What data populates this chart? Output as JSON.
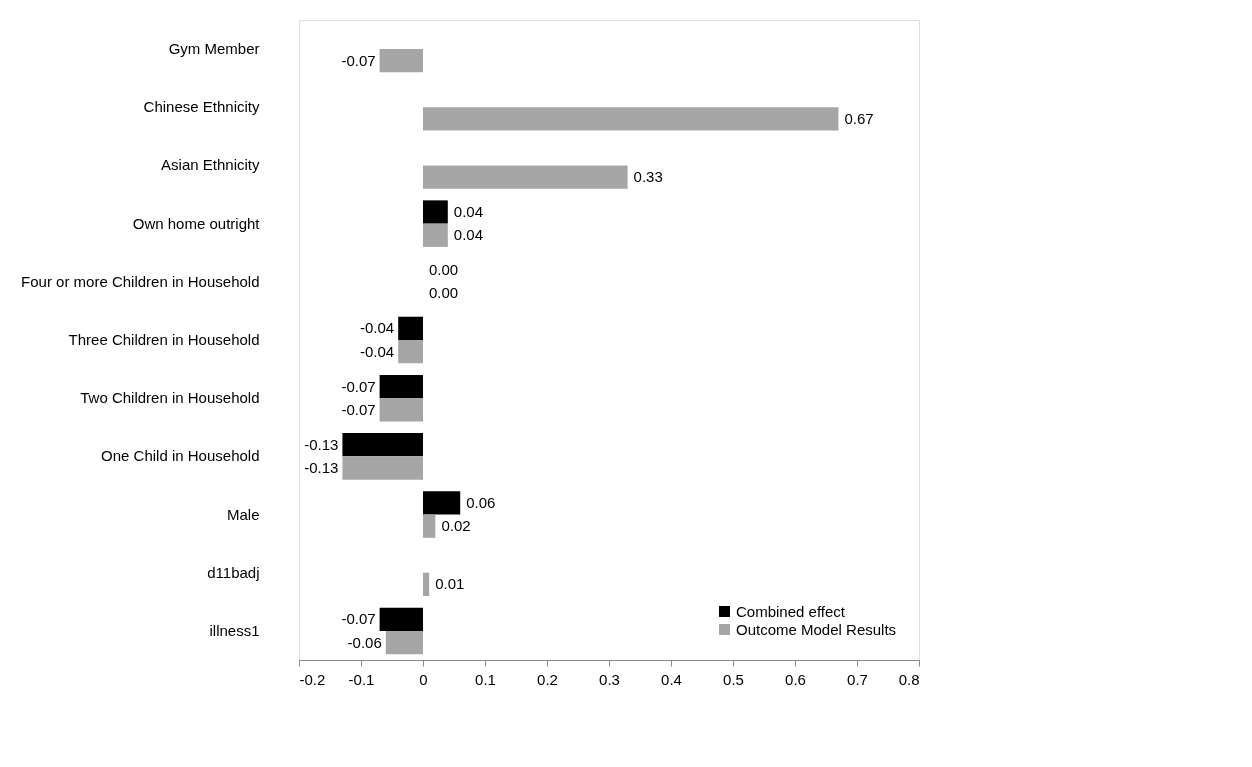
{
  "chart_data": {
    "type": "bar",
    "orientation": "horizontal",
    "categories": [
      "Gym Member",
      "Chinese Ethnicity",
      "Asian Ethnicity",
      "Own home outright",
      "Four or more Children in Household",
      "Three Children in Household",
      "Two Children in Household",
      "One Child in Household",
      "Male",
      "d11badj",
      "illness1"
    ],
    "series": [
      {
        "name": "Combined effect",
        "color": "#000000",
        "values": [
          null,
          null,
          null,
          0.04,
          0.0,
          -0.04,
          -0.07,
          -0.13,
          0.06,
          null,
          -0.07
        ],
        "value_labels": [
          null,
          null,
          null,
          "0.04",
          "0.00",
          "-0.04",
          "-0.07",
          "-0.13",
          "0.06",
          null,
          "-0.07"
        ]
      },
      {
        "name": "Outcome Model Results",
        "color": "#a6a6a6",
        "values": [
          -0.07,
          0.67,
          0.33,
          0.04,
          0.0,
          -0.04,
          -0.07,
          -0.13,
          0.02,
          0.01,
          -0.06
        ],
        "value_labels": [
          "-0.07",
          "0.67",
          "0.33",
          "0.04",
          "0.00",
          "-0.04",
          "-0.07",
          "-0.13",
          "0.02",
          "0.01",
          "-0.06"
        ]
      }
    ],
    "xlim": [
      -0.2,
      0.8
    ],
    "xticks": [
      -0.2,
      -0.1,
      0,
      0.1,
      0.2,
      0.3,
      0.4,
      0.5,
      0.6,
      0.7,
      0.8
    ],
    "grid": false,
    "legend": "bottom right"
  }
}
